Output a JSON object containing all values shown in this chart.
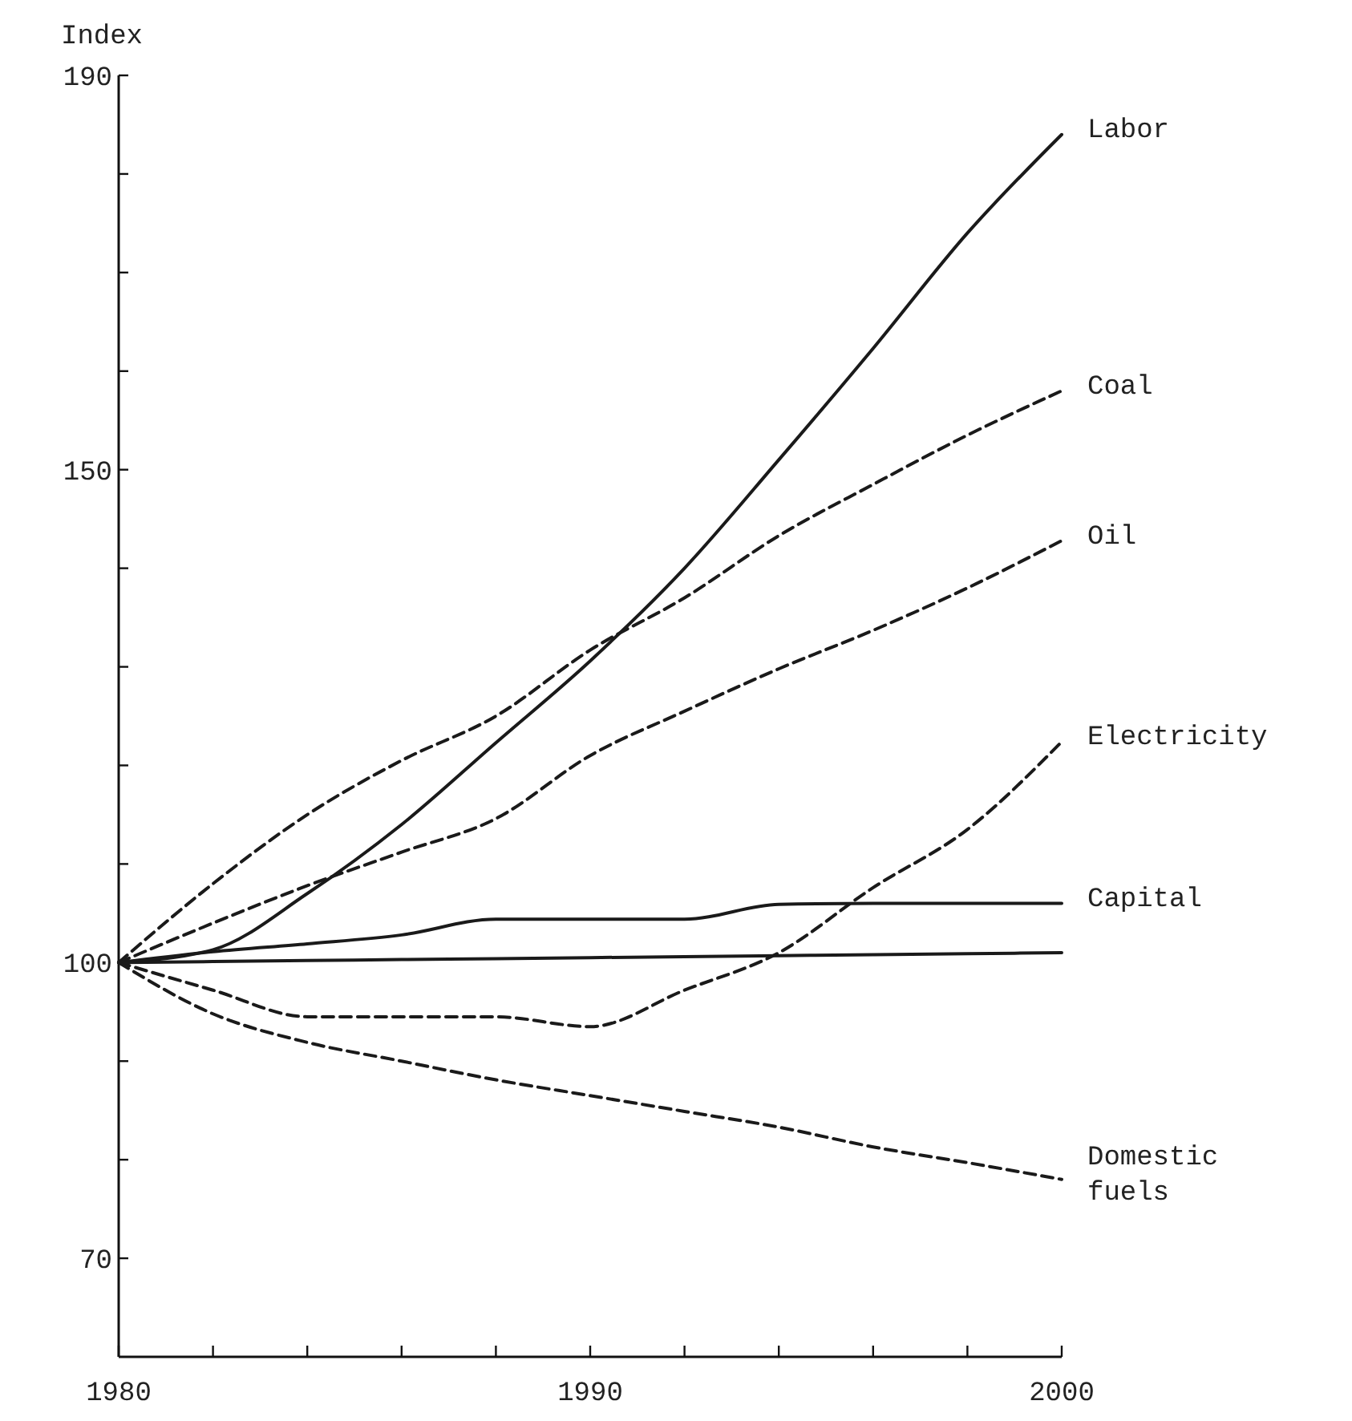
{
  "chart_data": {
    "type": "line",
    "ylabel": "Index",
    "x": [
      1980,
      1982,
      1984,
      1986,
      1988,
      1990,
      1992,
      1994,
      1996,
      1998,
      2000
    ],
    "xlim": [
      1980,
      2000
    ],
    "xticks": [
      1980,
      {
        "value": 1982,
        "label": null
      },
      {
        "value": 1984,
        "label": null
      },
      {
        "value": 1986,
        "label": null
      },
      {
        "value": 1988,
        "label": null
      },
      1990,
      {
        "value": 1992,
        "label": null
      },
      {
        "value": 1994,
        "label": null
      },
      {
        "value": 1996,
        "label": null
      },
      {
        "value": 1998,
        "label": null
      },
      2000
    ],
    "ylim": [
      60,
      190
    ],
    "yticks": [
      {
        "value": 70,
        "label": "70"
      },
      {
        "value": 80,
        "label": null
      },
      {
        "value": 90,
        "label": null
      },
      100,
      {
        "value": 110,
        "label": null
      },
      {
        "value": 120,
        "label": null
      },
      {
        "value": 130,
        "label": null
      },
      {
        "value": 140,
        "label": null
      },
      150,
      {
        "value": 160,
        "label": null
      },
      {
        "value": 170,
        "label": null
      },
      {
        "value": 180,
        "label": null
      },
      190
    ],
    "grid": false,
    "marker": "none",
    "series": [
      {
        "name": "Labor",
        "color": "#1a1a1a",
        "line_style": "solid",
        "values": [
          100,
          101.3,
          107,
          114,
          122.3,
          130.6,
          140,
          151,
          162.3,
          174,
          184
        ]
      },
      {
        "name": "Coal",
        "color": "#1a1a1a",
        "line_style": "dashed",
        "values": [
          100,
          108,
          115,
          120.5,
          125,
          131.7,
          137,
          143.3,
          148.5,
          153.5,
          158
        ]
      },
      {
        "name": "Oil",
        "color": "#1a1a1a",
        "line_style": "dashed",
        "values": [
          100,
          104,
          107.8,
          111.2,
          114.6,
          121,
          125.5,
          129.8,
          133.7,
          138,
          142.8
        ]
      },
      {
        "name": "Electricity",
        "color": "#1a1a1a",
        "line_style": "dashed",
        "values": [
          100,
          97.2,
          94.5,
          94.5,
          94.5,
          93.5,
          97.2,
          101,
          107.6,
          113.5,
          122.4
        ]
      },
      {
        "name": "Capital",
        "color": "#1a1a1a",
        "line_style": "solid",
        "values": [
          100,
          101.1,
          101.9,
          102.8,
          104.4,
          104.4,
          104.4,
          105.9,
          106,
          106,
          106
        ]
      },
      {
        "color": "#1a1a1a",
        "line_style": "solid",
        "values": [
          100,
          100.1,
          100.2,
          100.3,
          100.4,
          100.5,
          100.6,
          100.7,
          100.8,
          100.9,
          101
        ]
      },
      {
        "name": "Domestic fuels",
        "color": "#1a1a1a",
        "line_style": "dashed",
        "values": [
          100,
          94.8,
          91.9,
          90,
          88.1,
          86.5,
          84.9,
          83.3,
          81.3,
          79.7,
          78
        ]
      }
    ]
  }
}
